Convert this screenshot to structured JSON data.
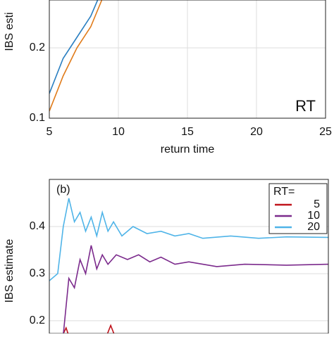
{
  "chart_data": [
    {
      "type": "line",
      "ylabel": "IBS esti",
      "xlabel": "return time",
      "legend_title": "RT",
      "xlim": [
        5,
        25
      ],
      "xticks": [
        5,
        10,
        15,
        20,
        25
      ],
      "ylim": [
        0.1,
        0.268
      ],
      "yticks": [
        0.1,
        0.2
      ],
      "grid": true,
      "series": [
        {
          "color": "#2a7fc1",
          "x": [
            5,
            6,
            7,
            8,
            8.5
          ],
          "values": [
            0.135,
            0.185,
            0.215,
            0.245,
            0.268
          ]
        },
        {
          "color": "#e07b1a",
          "x": [
            5,
            6,
            7,
            8,
            8.8
          ],
          "values": [
            0.11,
            0.16,
            0.2,
            0.23,
            0.268
          ]
        }
      ]
    },
    {
      "type": "line",
      "panel_label": "(b)",
      "ylabel": "IBS estimate",
      "legend_title": "RT=",
      "xlim": [
        0,
        100
      ],
      "ylim": [
        0.173,
        0.5
      ],
      "yticks": [
        0.2,
        0.3,
        0.4
      ],
      "grid": true,
      "series": [
        {
          "name": "5",
          "color": "#c0141c",
          "x": [
            4,
            6,
            8,
            20,
            22,
            24
          ],
          "values": [
            0.16,
            0.185,
            0.15,
            0.16,
            0.19,
            0.16
          ]
        },
        {
          "name": "10",
          "color": "#7b2a8c",
          "x": [
            5,
            7,
            9,
            11,
            13,
            15,
            17,
            19,
            21,
            24,
            28,
            32,
            36,
            40,
            45,
            50,
            60,
            70,
            85,
            100
          ],
          "values": [
            0.17,
            0.29,
            0.27,
            0.33,
            0.3,
            0.36,
            0.31,
            0.34,
            0.32,
            0.34,
            0.33,
            0.34,
            0.325,
            0.335,
            0.32,
            0.325,
            0.315,
            0.32,
            0.318,
            0.32
          ]
        },
        {
          "name": "20",
          "color": "#4fb4e8",
          "x": [
            0,
            3,
            5,
            7,
            9,
            11,
            13,
            15,
            17,
            19,
            21,
            23,
            26,
            30,
            35,
            40,
            45,
            50,
            55,
            65,
            75,
            85,
            100
          ],
          "values": [
            0.285,
            0.3,
            0.4,
            0.46,
            0.41,
            0.43,
            0.39,
            0.42,
            0.38,
            0.43,
            0.39,
            0.41,
            0.38,
            0.4,
            0.385,
            0.39,
            0.38,
            0.385,
            0.375,
            0.38,
            0.375,
            0.378,
            0.377
          ]
        }
      ]
    }
  ]
}
